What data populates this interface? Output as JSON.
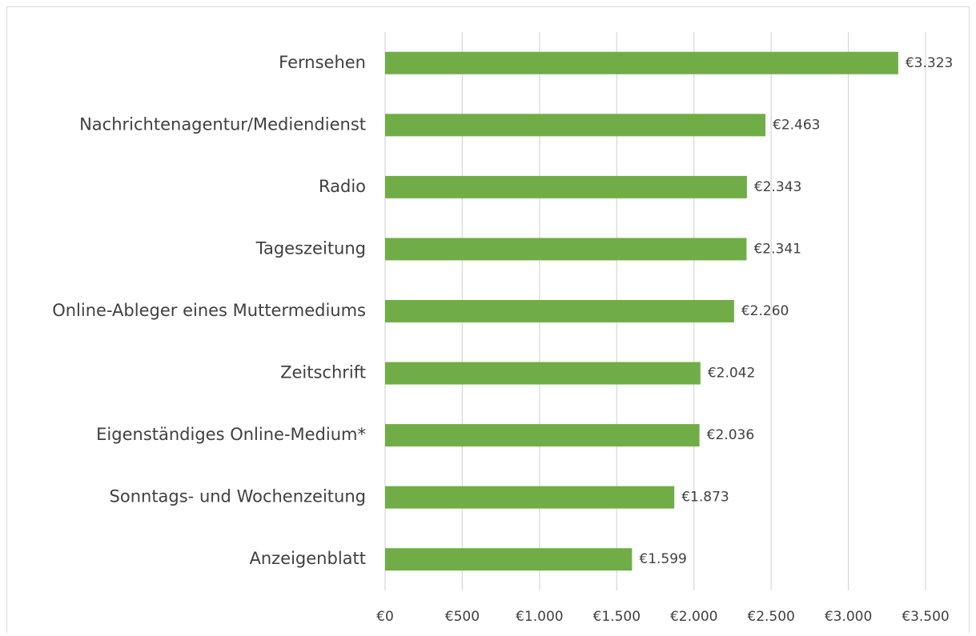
{
  "chart_data": {
    "type": "bar",
    "orientation": "horizontal",
    "categories": [
      "Fernsehen",
      "Nachrichtenagentur/Mediendienst",
      "Radio",
      "Tageszeitung",
      "Online-Ableger eines Muttermediums",
      "Zeitschrift",
      "Eigenständiges Online-Medium*",
      "Sonntags- und Wochenzeitung",
      "Anzeigenblatt"
    ],
    "values": [
      3323,
      2463,
      2343,
      2341,
      2260,
      2042,
      2036,
      1873,
      1599
    ],
    "value_labels": [
      "€3.323",
      "€2.463",
      "€2.343",
      "€2.341",
      "€2.260",
      "€2.042",
      "€2.036",
      "€1.873",
      "€1.599"
    ],
    "color": "#70ad47",
    "xlim": [
      0,
      3500
    ],
    "xticks": [
      {
        "value": 0,
        "label": "€0"
      },
      {
        "value": 500,
        "label": "€500"
      },
      {
        "value": 1000,
        "label": "€1.000"
      },
      {
        "value": 1500,
        "label": "€1.500"
      },
      {
        "value": 2000,
        "label": "€2.000"
      },
      {
        "value": 2500,
        "label": "€2.500"
      },
      {
        "value": 3000,
        "label": "€3.000"
      },
      {
        "value": 3500,
        "label": "€3.500"
      }
    ],
    "grid": true
  }
}
